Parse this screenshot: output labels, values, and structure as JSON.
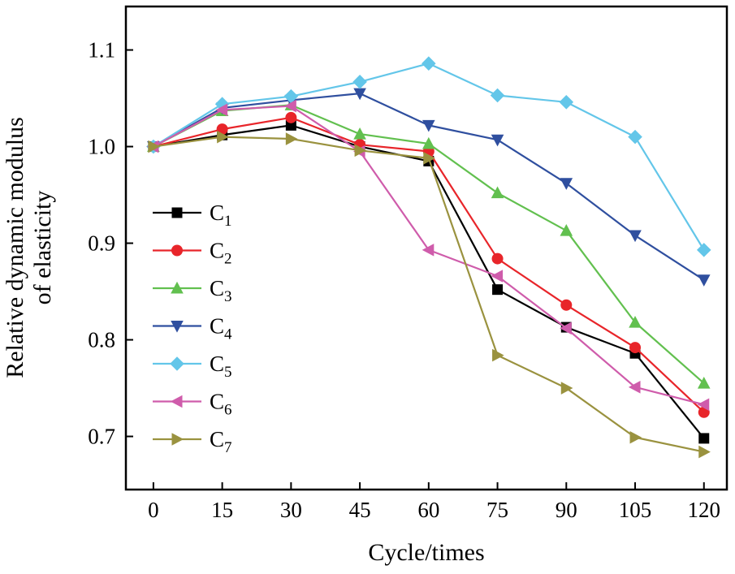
{
  "chart_data": {
    "type": "line",
    "title": "",
    "xlabel": "Cycle/times",
    "ylabel_line1": "Relative dynamic modulus",
    "ylabel_line2": "of elasticity",
    "x": [
      0,
      15,
      30,
      45,
      60,
      75,
      90,
      105,
      120
    ],
    "x_tick_labels": [
      "0",
      "15",
      "30",
      "45",
      "60",
      "75",
      "90",
      "105",
      "120"
    ],
    "y_ticks": [
      0.7,
      0.8,
      0.9,
      1.0,
      1.1
    ],
    "y_tick_labels": [
      "0.7",
      "0.8",
      "0.9",
      "1.0",
      "1.1"
    ],
    "xlim": [
      -6,
      125
    ],
    "ylim": [
      0.645,
      1.145
    ],
    "grid": false,
    "legend_position": "inside-left",
    "series": [
      {
        "name": "C1",
        "base": "C",
        "sub": "1",
        "color": "#000000",
        "marker": "square",
        "values": [
          1.0,
          1.012,
          1.022,
          1.0,
          0.985,
          0.852,
          0.813,
          0.786,
          0.698
        ]
      },
      {
        "name": "C2",
        "base": "C",
        "sub": "2",
        "color": "#e8252a",
        "marker": "circle",
        "values": [
          1.0,
          1.018,
          1.03,
          1.002,
          0.995,
          0.884,
          0.836,
          0.792,
          0.725
        ]
      },
      {
        "name": "C3",
        "base": "C",
        "sub": "3",
        "color": "#62c04f",
        "marker": "triangle-up",
        "values": [
          1.0,
          1.037,
          1.043,
          1.013,
          1.003,
          0.952,
          0.913,
          0.818,
          0.755
        ]
      },
      {
        "name": "C4",
        "base": "C",
        "sub": "4",
        "color": "#2f4f9f",
        "marker": "triangle-down",
        "values": [
          1.0,
          1.04,
          1.048,
          1.055,
          1.022,
          1.007,
          0.962,
          0.908,
          0.862
        ]
      },
      {
        "name": "C5",
        "base": "C",
        "sub": "5",
        "color": "#63c6e9",
        "marker": "diamond",
        "values": [
          1.0,
          1.044,
          1.052,
          1.067,
          1.086,
          1.053,
          1.046,
          1.01,
          0.893
        ]
      },
      {
        "name": "C6",
        "base": "C",
        "sub": "6",
        "color": "#cf5cab",
        "marker": "triangle-left",
        "values": [
          1.0,
          1.038,
          1.042,
          0.995,
          0.893,
          0.866,
          0.812,
          0.751,
          0.733
        ]
      },
      {
        "name": "C7",
        "base": "C",
        "sub": "7",
        "color": "#9a923f",
        "marker": "triangle-right",
        "values": [
          1.0,
          1.01,
          1.008,
          0.996,
          0.988,
          0.784,
          0.75,
          0.699,
          0.684
        ]
      }
    ]
  }
}
